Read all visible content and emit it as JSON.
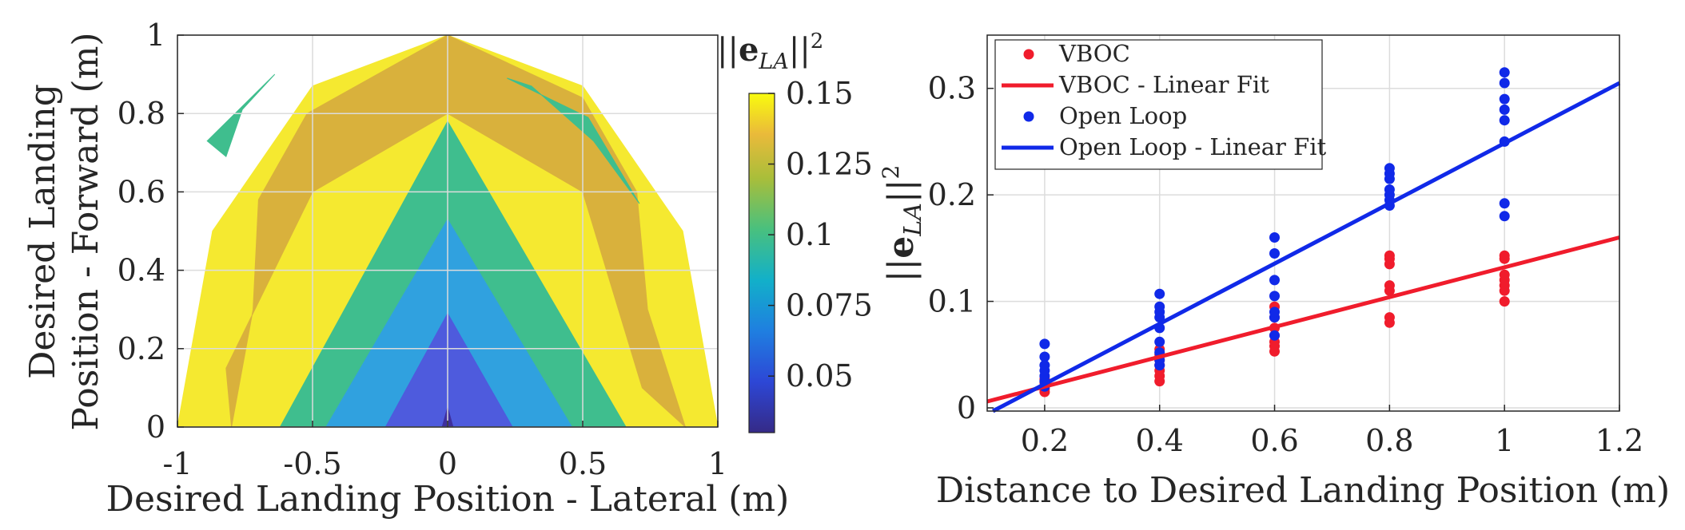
{
  "chart_data": [
    {
      "type": "contour",
      "title": "",
      "xlabel": "Desired Landing Position - Lateral (m)",
      "ylabel_lines": [
        "Desired Landing",
        "Position - Forward (m)"
      ],
      "xlim": [
        -1,
        1
      ],
      "ylim": [
        0,
        1
      ],
      "xticks": [
        -1,
        -0.5,
        0,
        0.5,
        1
      ],
      "xtick_labels": [
        "-1",
        "-0.5",
        "0",
        "0.5",
        "1"
      ],
      "yticks": [
        0,
        0.2,
        0.4,
        0.6,
        0.8,
        1
      ],
      "ytick_labels": [
        "0",
        "0.2",
        "0.4",
        "0.6",
        "0.8",
        "1"
      ],
      "grid": true,
      "colorbar": {
        "label": "||e_LA||²",
        "range": [
          0.03,
          0.15
        ],
        "ticks": [
          0.05,
          0.075,
          0.1,
          0.125,
          0.15
        ],
        "tick_labels": [
          "0.05",
          "0.075",
          "0.1",
          "0.125",
          "0.15"
        ],
        "colormap": "parula"
      },
      "regions": [
        {
          "level": 0.15,
          "color": "#F5E930",
          "points": [
            [
              -1,
              0
            ],
            [
              -0.87,
              0.5
            ],
            [
              -0.5,
              0.87
            ],
            [
              0,
              1
            ],
            [
              0.5,
              0.87
            ],
            [
              0.74,
              0.63
            ],
            [
              0.87,
              0.5
            ],
            [
              1,
              0
            ]
          ]
        },
        {
          "level": 0.125,
          "color": "#D9B13C",
          "points": [
            [
              -0.8,
              0
            ],
            [
              -0.72,
              0.3
            ],
            [
              -0.7,
              0.58
            ],
            [
              -0.52,
              0.8
            ],
            [
              0,
              1
            ],
            [
              0.5,
              0.84
            ],
            [
              0.7,
              0.6
            ],
            [
              0.74,
              0.3
            ],
            [
              0.88,
              0
            ],
            [
              0.72,
              0.1
            ],
            [
              0.5,
              0.6
            ],
            [
              0,
              0.8
            ],
            [
              -0.5,
              0.6
            ],
            [
              -0.82,
              0.15
            ]
          ]
        },
        {
          "level": 0.1,
          "color": "#3FBE8E",
          "points": [
            [
              -0.62,
              0
            ],
            [
              0,
              0.78
            ],
            [
              0.66,
              0
            ]
          ]
        },
        {
          "level": 0.1,
          "color": "#3FBE8E",
          "points": [
            [
              -0.89,
              0.73
            ],
            [
              -0.64,
              0.9
            ],
            [
              -0.76,
              0.81
            ],
            [
              -0.82,
              0.69
            ]
          ]
        },
        {
          "level": 0.1,
          "color": "#3FBE8E",
          "points": [
            [
              0.22,
              0.89
            ],
            [
              0.52,
              0.79
            ],
            [
              0.71,
              0.57
            ],
            [
              0.54,
              0.73
            ],
            [
              0.31,
              0.87
            ]
          ]
        },
        {
          "level": 0.075,
          "color": "#30A1DF",
          "points": [
            [
              -0.45,
              0
            ],
            [
              0,
              0.53
            ],
            [
              0.46,
              0
            ]
          ]
        },
        {
          "level": 0.05,
          "color": "#4E5BDD",
          "points": [
            [
              -0.23,
              0
            ],
            [
              0,
              0.29
            ],
            [
              0.24,
              0
            ]
          ]
        },
        {
          "level": 0.03,
          "color": "#3E2F9E",
          "points": [
            [
              -0.02,
              0
            ],
            [
              0,
              0.05
            ],
            [
              0.02,
              0
            ]
          ]
        }
      ]
    },
    {
      "type": "scatter",
      "title": "",
      "xlabel": "Distance to Desired Landing Position (m)",
      "ylabel": "||e_LA||²",
      "xlim": [
        0.1,
        1.2
      ],
      "ylim": [
        -0.003,
        0.35
      ],
      "xticks": [
        0.2,
        0.4,
        0.6,
        0.8,
        1,
        1.2
      ],
      "xtick_labels": [
        "0.2",
        "0.4",
        "0.6",
        "0.8",
        "1",
        "1.2"
      ],
      "yticks": [
        0,
        0.1,
        0.2,
        0.3
      ],
      "ytick_labels": [
        "0",
        "0.1",
        "0.2",
        "0.3"
      ],
      "grid": true,
      "legend_position": "top-left",
      "series": [
        {
          "name": "VBOC",
          "kind": "points",
          "color": "#F01C2C",
          "x": [
            0.2,
            0.2,
            0.2,
            0.2,
            0.2,
            0.4,
            0.4,
            0.4,
            0.4,
            0.4,
            0.4,
            0.4,
            0.6,
            0.6,
            0.6,
            0.6,
            0.6,
            0.6,
            0.6,
            0.8,
            0.8,
            0.8,
            0.8,
            0.8,
            0.8,
            0.8,
            1,
            1,
            1,
            1,
            1,
            1,
            1
          ],
          "y": [
            0.015,
            0.018,
            0.021,
            0.024,
            0.027,
            0.025,
            0.03,
            0.035,
            0.04,
            0.045,
            0.05,
            0.055,
            0.053,
            0.058,
            0.062,
            0.068,
            0.075,
            0.085,
            0.095,
            0.08,
            0.085,
            0.11,
            0.115,
            0.135,
            0.14,
            0.143,
            0.1,
            0.11,
            0.115,
            0.12,
            0.125,
            0.14,
            0.143
          ]
        },
        {
          "name": "VBOC - Linear Fit",
          "kind": "line",
          "color": "#F01C2C",
          "x": [
            0.1,
            1.2
          ],
          "y": [
            0.006,
            0.16
          ]
        },
        {
          "name": "Open Loop",
          "kind": "points",
          "color": "#1029E8",
          "x": [
            0.2,
            0.2,
            0.2,
            0.2,
            0.2,
            0.2,
            0.2,
            0.4,
            0.4,
            0.4,
            0.4,
            0.4,
            0.4,
            0.4,
            0.4,
            0.4,
            0.6,
            0.6,
            0.6,
            0.6,
            0.6,
            0.6,
            0.6,
            0.8,
            0.8,
            0.8,
            0.8,
            0.8,
            0.8,
            0.8,
            1,
            1,
            1,
            1,
            1,
            1,
            1,
            1
          ],
          "y": [
            0.02,
            0.025,
            0.03,
            0.035,
            0.04,
            0.048,
            0.06,
            0.04,
            0.045,
            0.052,
            0.062,
            0.075,
            0.085,
            0.09,
            0.095,
            0.107,
            0.068,
            0.085,
            0.09,
            0.105,
            0.12,
            0.145,
            0.16,
            0.19,
            0.195,
            0.2,
            0.205,
            0.215,
            0.22,
            0.225,
            0.18,
            0.192,
            0.25,
            0.27,
            0.28,
            0.29,
            0.305,
            0.315
          ]
        },
        {
          "name": "Open Loop - Linear Fit",
          "kind": "line",
          "color": "#1029E8",
          "x": [
            0.11,
            1.2
          ],
          "y": [
            -0.003,
            0.305
          ]
        }
      ]
    }
  ]
}
